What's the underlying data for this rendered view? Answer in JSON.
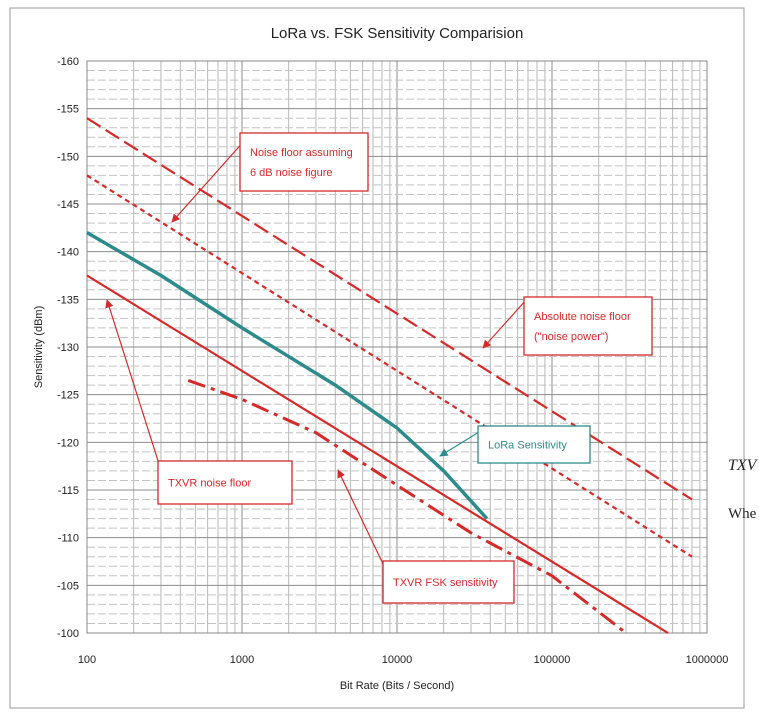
{
  "chart_data": {
    "type": "line",
    "title": "LoRa vs. FSK Sensitivity Comparision",
    "xlabel": "Bit Rate (Bits / Second)",
    "ylabel": "Sensitivity (dBm)",
    "x_scale": "log",
    "xlim": [
      100,
      1000000
    ],
    "ylim": [
      -100,
      -160
    ],
    "x_ticks": [
      "100",
      "1000",
      "10000",
      "100000",
      "1000000"
    ],
    "y_ticks": [
      "-160",
      "-155",
      "-150",
      "-145",
      "-140",
      "-135",
      "-130",
      "-125",
      "-120",
      "-115",
      "-110",
      "-105",
      "-100"
    ],
    "grid": true,
    "series": [
      {
        "style": "dashed",
        "color": "#d42a2a",
        "points": [
          [
            100,
            -154
          ],
          [
            800000,
            -114
          ]
        ]
      },
      {
        "style": "dotted",
        "color": "#d42a2a",
        "points": [
          [
            100,
            -148
          ],
          [
            800000,
            -108
          ]
        ]
      },
      {
        "style": "solid",
        "color": "#d42a2a",
        "points": [
          [
            100,
            -137.5
          ],
          [
            560000,
            -100
          ]
        ]
      },
      {
        "style": "dash-dot",
        "color": "#d42a2a",
        "points": [
          [
            450,
            -126.5
          ],
          [
            1000,
            -124.5
          ],
          [
            3000,
            -121
          ],
          [
            10000,
            -115.5
          ],
          [
            30000,
            -110.5
          ],
          [
            100000,
            -106
          ],
          [
            300000,
            -100
          ]
        ]
      },
      {
        "style": "solid",
        "color": "#2e8b8b",
        "points": [
          [
            100,
            -142
          ],
          [
            300,
            -137.5
          ],
          [
            1000,
            -132
          ],
          [
            4000,
            -126
          ],
          [
            10000,
            -121.5
          ],
          [
            20000,
            -117
          ],
          [
            38000,
            -112
          ]
        ]
      }
    ],
    "annotations": [
      {
        "text": "Noise floor assuming 6 dB noise figure",
        "lines": [
          "Noise floor assuming",
          "6 dB noise figure"
        ],
        "color": "#d42a2a"
      },
      {
        "text": "Absolute noise floor (\"noise power\")",
        "lines": [
          "Absolute noise floor",
          "(\"noise power\")"
        ],
        "color": "#d42a2a"
      },
      {
        "text": "LoRa Sensitivity",
        "lines": [
          "LoRa Sensitivity"
        ],
        "color": "#2e8b8b"
      },
      {
        "text": "TXVR noise floor",
        "lines": [
          "TXVR noise floor"
        ],
        "color": "#d42a2a"
      },
      {
        "text": "TXVR FSK sensitivity",
        "lines": [
          "TXVR FSK sensitivity"
        ],
        "color": "#d42a2a"
      }
    ]
  },
  "side_text": {
    "line1": "TXV",
    "line2": "Whe"
  }
}
